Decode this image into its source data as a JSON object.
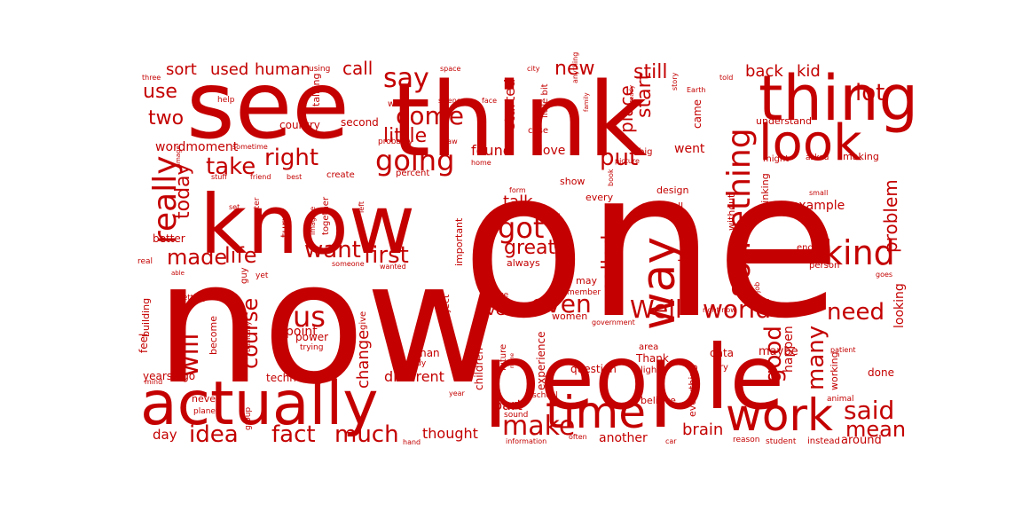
{
  "cloud": {
    "color": "#c40000",
    "words": [
      "one",
      "now",
      "see",
      "think",
      "know",
      "people",
      "actually",
      "time",
      "thing",
      "look",
      "work",
      "way",
      "kind",
      "something",
      "Well",
      "world",
      "going",
      "really",
      "right",
      "take",
      "say",
      "come",
      "little",
      "got",
      "will",
      "us",
      "course",
      "idea",
      "fact",
      "much",
      "make",
      "even",
      "put",
      "said",
      "mean",
      "need",
      "good",
      "many",
      "lot",
      "back",
      "kid",
      "still",
      "start",
      "place",
      "new",
      "life",
      "made",
      "want",
      "first",
      "today",
      "call",
      "two",
      "use",
      "sort",
      "used",
      "human",
      "wordmoment",
      "country",
      "second",
      "talking",
      "water",
      "science",
      "face",
      "city",
      "anything",
      "little bit",
      "family",
      "already",
      "story",
      "Earth",
      "told",
      "space",
      "using",
      "help",
      "three",
      "image",
      "sometime",
      "stuff",
      "friend",
      "best",
      "create",
      "percent",
      "probably",
      "saw",
      "home",
      "case",
      "big",
      "picture",
      "book",
      "asked",
      "making",
      "might",
      "understand",
      "came",
      "went",
      "problem",
      "example",
      "system",
      "called",
      "show",
      "every",
      "form",
      "tell",
      "design",
      "without",
      "thinking",
      "small",
      "end",
      "play",
      "person",
      "goes",
      "job",
      "maybe",
      "patient",
      "happen",
      "looking",
      "live",
      "part",
      "found",
      "started",
      "love",
      "great",
      "talk",
      "always",
      "important",
      "happened",
      "may",
      "remember",
      "move",
      "government",
      "women",
      "project",
      "give",
      "power",
      "trying",
      "point",
      "body",
      "children",
      "future",
      "experience",
      "question",
      "Thank",
      "light",
      "area",
      "data",
      "try",
      "done",
      "working",
      "animal",
      "everything",
      "believe",
      "school",
      "sound",
      "year",
      "change",
      "different",
      "technology",
      "thought",
      "brain",
      "another",
      "reason",
      "student",
      "instead",
      "around",
      "day",
      "years ago",
      "never",
      "planet",
      "group",
      "mind",
      "feel",
      "building",
      "become",
      "basically",
      "getting",
      "better",
      "real",
      "turn",
      "imagine",
      "together",
      "guy",
      "yet",
      "someone",
      "wanted",
      "left",
      "set",
      "computer",
      "able",
      "man",
      "name",
      "information",
      "hand",
      "often",
      "car",
      "right now"
    ]
  }
}
